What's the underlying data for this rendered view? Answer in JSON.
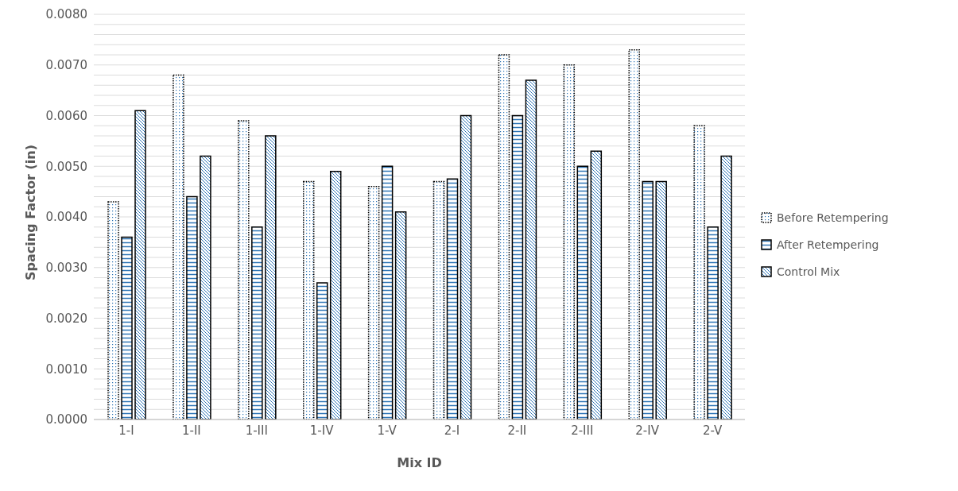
{
  "chart_data": {
    "type": "bar",
    "xlabel": "Mix ID",
    "ylabel": "Spacing Factor (in)",
    "categories": [
      "1-I",
      "1-II",
      "1-III",
      "1-IV",
      "1-V",
      "2-I",
      "2-II",
      "2-III",
      "2-IV",
      "2-V"
    ],
    "series": [
      {
        "name": "Before Retempering",
        "color": "#000000",
        "values": [
          0.0043,
          0.0068,
          0.0059,
          0.0047,
          0.0046,
          0.0047,
          0.0072,
          0.007,
          0.0073,
          0.0058
        ]
      },
      {
        "name": "After Retempering",
        "color": "#000000",
        "values": [
          0.0036,
          0.0044,
          0.0038,
          0.0027,
          0.005,
          0.00475,
          0.006,
          0.005,
          0.0047,
          0.0038
        ]
      },
      {
        "name": "Control Mix",
        "color": "#000000",
        "values": [
          0.0061,
          0.0052,
          0.0056,
          0.0049,
          0.0041,
          0.006,
          0.0067,
          0.0053,
          0.0047,
          0.0052
        ]
      }
    ],
    "ylim": [
      0,
      0.008
    ],
    "yticks": [
      {
        "value": 0,
        "label": "0.0000"
      },
      {
        "value": 0.0002,
        "label": null
      },
      {
        "value": 0.0004,
        "label": null
      },
      {
        "value": 0.0006,
        "label": null
      },
      {
        "value": 0.0008,
        "label": null
      },
      {
        "value": 0.001,
        "label": "0.0010"
      },
      {
        "value": 0.0012,
        "label": null
      },
      {
        "value": 0.0014,
        "label": null
      },
      {
        "value": 0.0016,
        "label": null
      },
      {
        "value": 0.0018,
        "label": null
      },
      {
        "value": 0.002,
        "label": "0.0020"
      },
      {
        "value": 0.0022,
        "label": null
      },
      {
        "value": 0.0024,
        "label": null
      },
      {
        "value": 0.0026,
        "label": null
      },
      {
        "value": 0.0028,
        "label": null
      },
      {
        "value": 0.003,
        "label": "0.0030"
      },
      {
        "value": 0.0032,
        "label": null
      },
      {
        "value": 0.0034,
        "label": null
      },
      {
        "value": 0.0036,
        "label": null
      },
      {
        "value": 0.0038,
        "label": null
      },
      {
        "value": 0.004,
        "label": "0.0040"
      },
      {
        "value": 0.0042,
        "label": null
      },
      {
        "value": 0.0044,
        "label": null
      },
      {
        "value": 0.0046,
        "label": null
      },
      {
        "value": 0.0048,
        "label": null
      },
      {
        "value": 0.005,
        "label": "0.0050"
      },
      {
        "value": 0.0052,
        "label": null
      },
      {
        "value": 0.0054,
        "label": null
      },
      {
        "value": 0.0056,
        "label": null
      },
      {
        "value": 0.0058,
        "label": null
      },
      {
        "value": 0.006,
        "label": "0.0060"
      },
      {
        "value": 0.0062,
        "label": null
      },
      {
        "value": 0.0064,
        "label": null
      },
      {
        "value": 0.0066,
        "label": null
      },
      {
        "value": 0.0068,
        "label": null
      },
      {
        "value": 0.007,
        "label": "0.0070"
      },
      {
        "value": 0.0072,
        "label": null
      },
      {
        "value": 0.0074,
        "label": null
      },
      {
        "value": 0.0076,
        "label": null
      },
      {
        "value": 0.0078,
        "label": null
      },
      {
        "value": 0.008,
        "label": "0.0080"
      }
    ],
    "grid": "y",
    "legend": "right"
  }
}
